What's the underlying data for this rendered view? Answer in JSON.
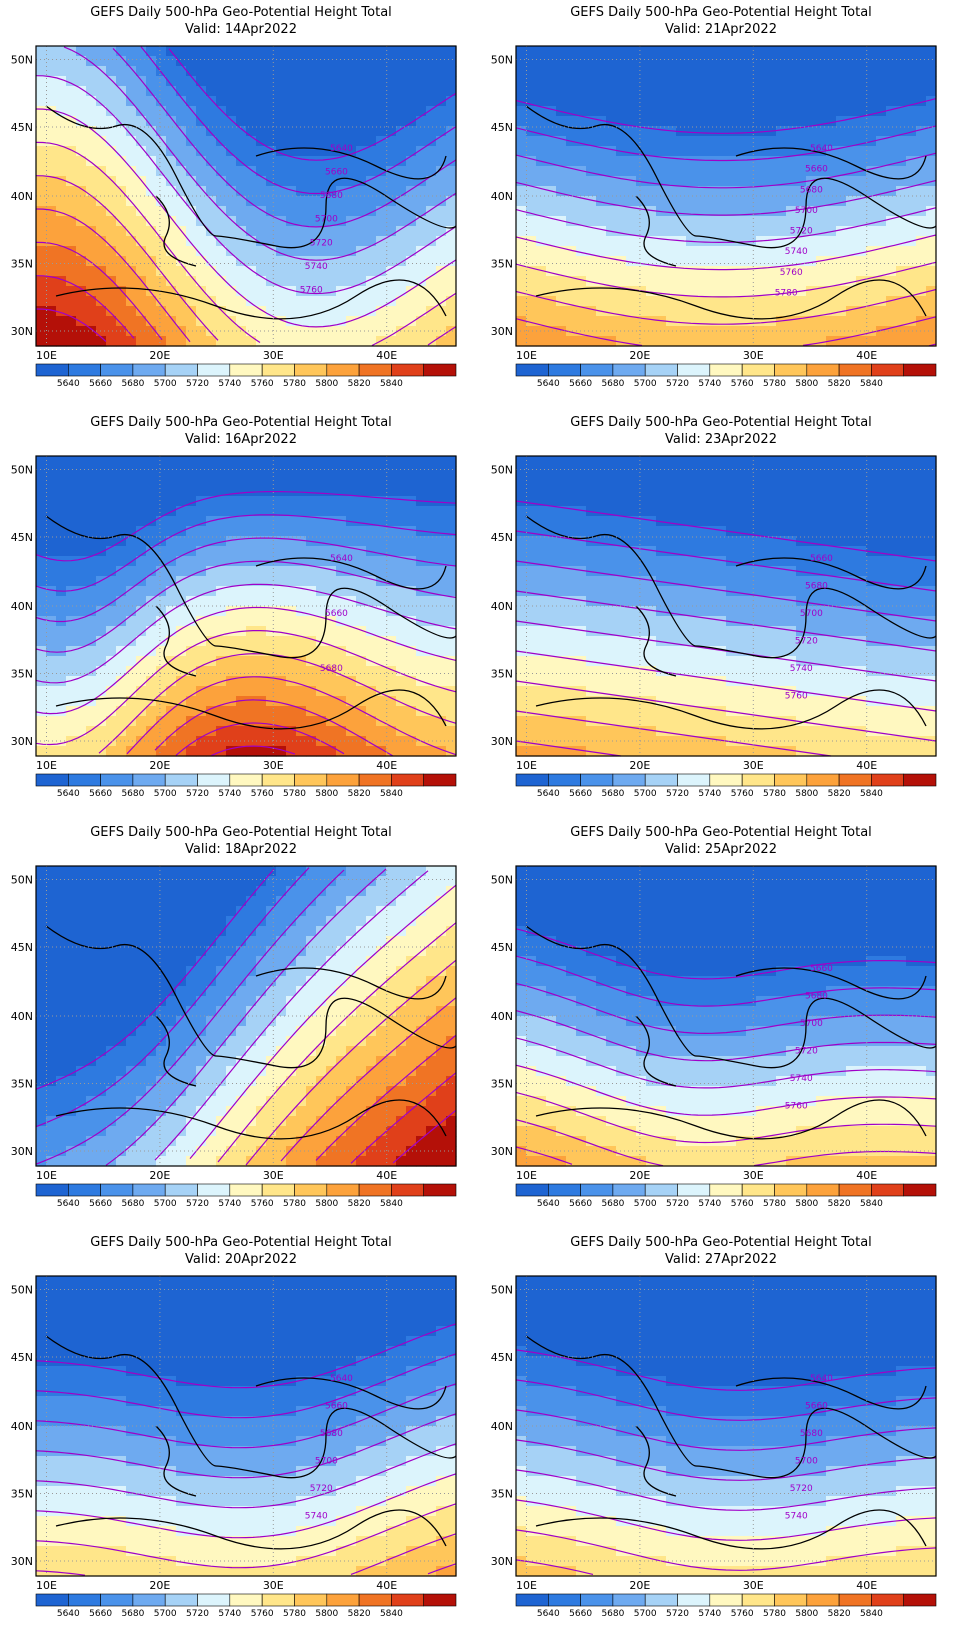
{
  "title_line1": "GEFS Daily 500-hPa Geo-Potential Height Total",
  "valid_prefix": "Valid:",
  "lat_labels": [
    "50N",
    "45N",
    "40N",
    "35N",
    "30N"
  ],
  "lon_labels": [
    "10E",
    "20E",
    "30E",
    "40E"
  ],
  "colorbar_levels": [
    "5640",
    "5660",
    "5680",
    "5700",
    "5720",
    "5740",
    "5760",
    "5780",
    "5800",
    "5820",
    "5840"
  ],
  "colorbar_colors": [
    "#1e64d2",
    "#2e7ae0",
    "#4a92ea",
    "#6eaaf0",
    "#a6d2f6",
    "#dcf4fc",
    "#fff8c0",
    "#ffe68a",
    "#ffc65a",
    "#fca23c",
    "#f07424",
    "#e0401a",
    "#b41008"
  ],
  "contour_color": "#a000c8",
  "panels": [
    {
      "valid": "14Apr2022",
      "labels": [
        "5640",
        "5660",
        "5680",
        "5700",
        "5720",
        "5740",
        "5760"
      ]
    },
    {
      "valid": "21Apr2022",
      "labels": [
        "5640",
        "5660",
        "5680",
        "5700",
        "5720",
        "5740",
        "5760",
        "5780"
      ]
    },
    {
      "valid": "16Apr2022",
      "labels": [
        "5640",
        "5660",
        "5680"
      ]
    },
    {
      "valid": "23Apr2022",
      "labels": [
        "5660",
        "5680",
        "5700",
        "5720",
        "5740",
        "5760"
      ]
    },
    {
      "valid": "18Apr2022",
      "labels": []
    },
    {
      "valid": "25Apr2022",
      "labels": [
        "5660",
        "5680",
        "5700",
        "5720",
        "5740",
        "5760"
      ]
    },
    {
      "valid": "20Apr2022",
      "labels": [
        "5640",
        "5660",
        "5680",
        "5700",
        "5720",
        "5740"
      ]
    },
    {
      "valid": "27Apr2022",
      "labels": [
        "5640",
        "5660",
        "5680",
        "5700",
        "5720",
        "5740"
      ]
    }
  ]
}
